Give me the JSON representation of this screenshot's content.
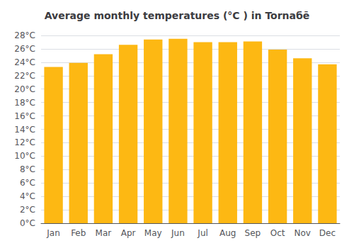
{
  "chart_data": {
    "type": "bar",
    "title": "Average monthly temperatures (°C ) in Tornaбē",
    "categories": [
      "Jan",
      "Feb",
      "Mar",
      "Apr",
      "May",
      "Jun",
      "Jul",
      "Aug",
      "Sep",
      "Oct",
      "Nov",
      "Dec"
    ],
    "values": [
      23.3,
      23.9,
      25.2,
      26.6,
      27.4,
      27.5,
      27.0,
      27.0,
      27.1,
      25.9,
      24.6,
      23.7
    ],
    "color": "#FDB813",
    "ylim": [
      0,
      28
    ],
    "yticks": [
      {
        "value": 0,
        "label": "0°C"
      },
      {
        "value": 2,
        "label": "2°C"
      },
      {
        "value": 4,
        "label": "4°C"
      },
      {
        "value": 6,
        "label": "6°C"
      },
      {
        "value": 8,
        "label": "8°C"
      },
      {
        "value": 10,
        "label": "10°C"
      },
      {
        "value": 12,
        "label": "12°C"
      },
      {
        "value": 14,
        "label": "14°C"
      },
      {
        "value": 16,
        "label": "16°C"
      },
      {
        "value": 18,
        "label": "18°C"
      },
      {
        "value": 20,
        "label": "20°C"
      },
      {
        "value": 22,
        "label": "22°C"
      },
      {
        "value": 24,
        "label": "24°C"
      },
      {
        "value": 26,
        "label": "26°C"
      },
      {
        "value": 28,
        "label": "28°C"
      }
    ],
    "grid": true
  }
}
